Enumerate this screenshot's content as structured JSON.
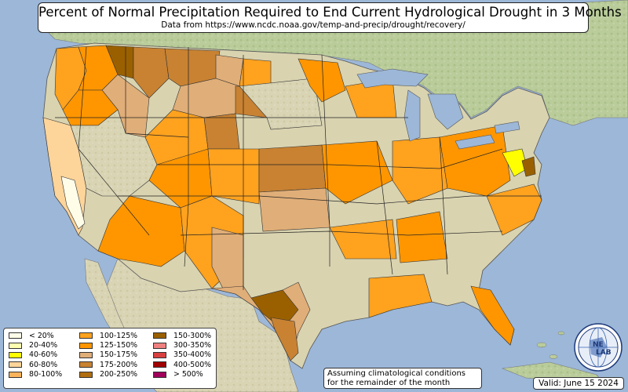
{
  "title": "Percent of Normal Precipitation Required to End Current Hydrological Drought in 3 Months",
  "subtitle": "Data from https://www.ncdc.noaa.gov/temp-and-precip/drought/recovery/",
  "legend": {
    "items": [
      {
        "label": "< 20%",
        "color": "#fffde8"
      },
      {
        "label": "20-40%",
        "color": "#ffffb0"
      },
      {
        "label": "40-60%",
        "color": "#ffff00"
      },
      {
        "label": "60-80%",
        "color": "#fdd49a"
      },
      {
        "label": "80-100%",
        "color": "#fbb45c"
      },
      {
        "label": "100-125%",
        "color": "#ffa21e"
      },
      {
        "label": "125-150%",
        "color": "#ff9600"
      },
      {
        "label": "150-175%",
        "color": "#e0ae78"
      },
      {
        "label": "175-200%",
        "color": "#c88232"
      },
      {
        "label": "200-250%",
        "color": "#b06e10"
      },
      {
        "label": "150-300%",
        "color": "#9a6000"
      },
      {
        "label": "300-350%",
        "color": "#f08080"
      },
      {
        "label": "350-400%",
        "color": "#d84040"
      },
      {
        "label": "400-500%",
        "color": "#a00000"
      },
      {
        "label": "> 500%",
        "color": "#a0005a"
      }
    ]
  },
  "note": {
    "line1": "Assuming climatological conditions",
    "line2": "for the remainder of the month"
  },
  "valid": "Valid: June 15 2024",
  "logo": {
    "text_top": "NE",
    "text_bottom": "LAB",
    "icon": "nexlab-globe-logo"
  },
  "colors": {
    "ocean": "#9cb7d8",
    "land": "#dcd8b8",
    "land_green": "#c9d5a6",
    "water": "#9cb7d8"
  }
}
